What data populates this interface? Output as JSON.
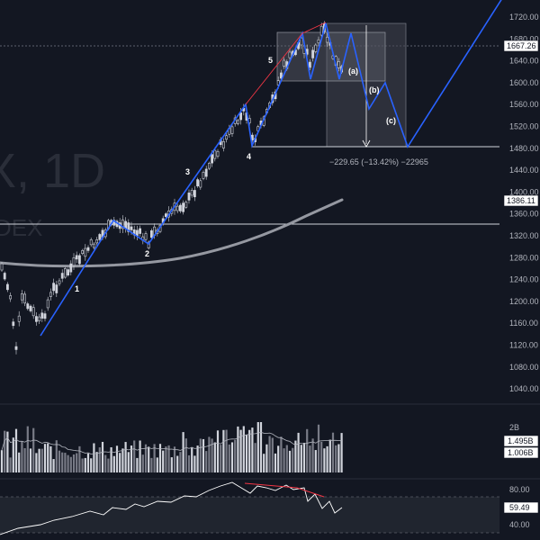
{
  "watermark": {
    "symbol": "X, 1D",
    "exchange": "DEX"
  },
  "price_axis": {
    "ticks": [
      "1720.00",
      "1680.00",
      "1640.00",
      "1600.00",
      "1560.00",
      "1520.00",
      "1480.00",
      "1440.00",
      "1400.00",
      "1360.00",
      "1320.00",
      "1280.00",
      "1240.00",
      "1200.00",
      "1160.00",
      "1120.00",
      "1080.00",
      "1040.00"
    ],
    "tags": {
      "current": "1667.26",
      "ma": "1386.11"
    }
  },
  "waves": {
    "w1": "1",
    "w2": "2",
    "w3": "3",
    "w4": "4",
    "w5": "5",
    "wa": "(a)",
    "wb": "(b)",
    "wc": "(c)"
  },
  "measure": {
    "label": "−229.65 (−13.42%) −22965"
  },
  "volume": {
    "scale": "2B",
    "tag1": "1.495B",
    "tag2": "1.006B"
  },
  "rsi": {
    "tick_high": "80.00",
    "tick_low": "40.00",
    "value": "59.49"
  },
  "colors": {
    "bg": "#131722",
    "wave": "#2962ff",
    "trend": "#f23645",
    "ma": "#b2b5be",
    "bar": "#d1d4dc",
    "box": "#434651"
  },
  "icons": {
    "price_pointer": "down-arrow-icon"
  }
}
